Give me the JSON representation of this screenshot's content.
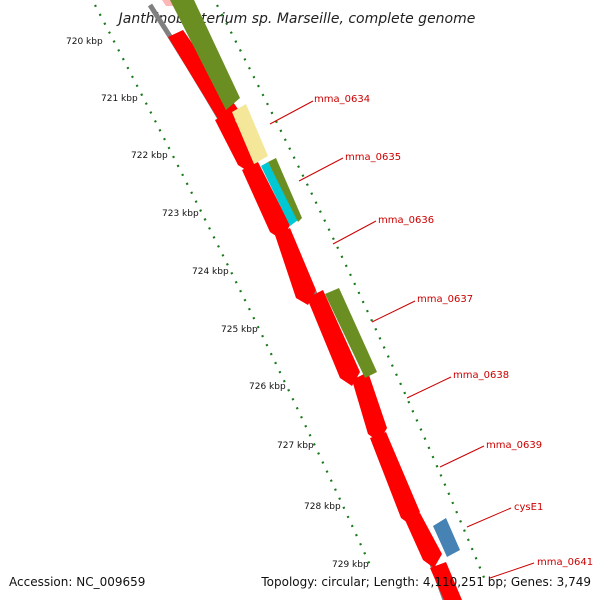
{
  "title": "Janthinobacterium sp. Marseille, complete genome",
  "accession": "Accession: NC_009659",
  "summary": "Topology: circular; Length: 4,110,251 bp; Genes: 3,749",
  "ticks": [
    "720 kbp",
    "721 kbp",
    "722 kbp",
    "723 kbp",
    "724 kbp",
    "725 kbp",
    "726 kbp",
    "727 kbp",
    "728 kbp",
    "729 kbp"
  ],
  "gene_labels": [
    "mma_0634",
    "mma_0635",
    "mma_0636",
    "mma_0637",
    "mma_0638",
    "mma_0639",
    "cysE1",
    "mma_0641"
  ],
  "colors": {
    "cds": "#ff0000",
    "olive": "#6b8e23",
    "yellow": "#f4e79a",
    "cyan": "#00c8d2",
    "blue": "#4682b4",
    "backbone": "#808080",
    "tick": "#1a7a1a",
    "leader": "#cc0000"
  }
}
